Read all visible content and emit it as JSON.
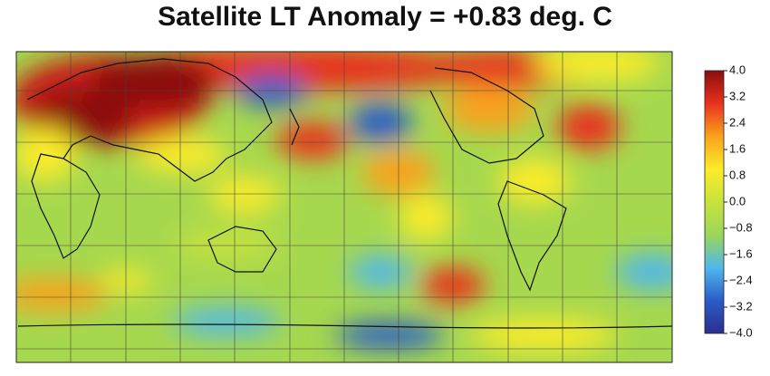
{
  "title": "Satellite LT Anomaly = +0.83 deg. C",
  "colorbar": {
    "lim": [
      -4,
      4
    ],
    "ticks": [
      {
        "value": 4,
        "label": "4.0"
      },
      3.2,
      2.4,
      1.6,
      0.8,
      {
        "value": 0,
        "label": "0.0"
      },
      {
        "value": -0.8,
        "label": "−0.8"
      },
      {
        "value": -1.6,
        "label": "−1.6"
      },
      {
        "value": -2.4,
        "label": "−2.4"
      },
      {
        "value": -3.2,
        "label": "−3.2"
      },
      {
        "value": -4,
        "label": "−4.0"
      }
    ],
    "colors": [
      "#2a2f8f",
      "#2a5cc8",
      "#4fb8ec",
      "#9bd65a",
      "#c8e23c",
      "#fbec2a",
      "#f9a21c",
      "#e8321e",
      "#8b0d0d"
    ]
  }
}
